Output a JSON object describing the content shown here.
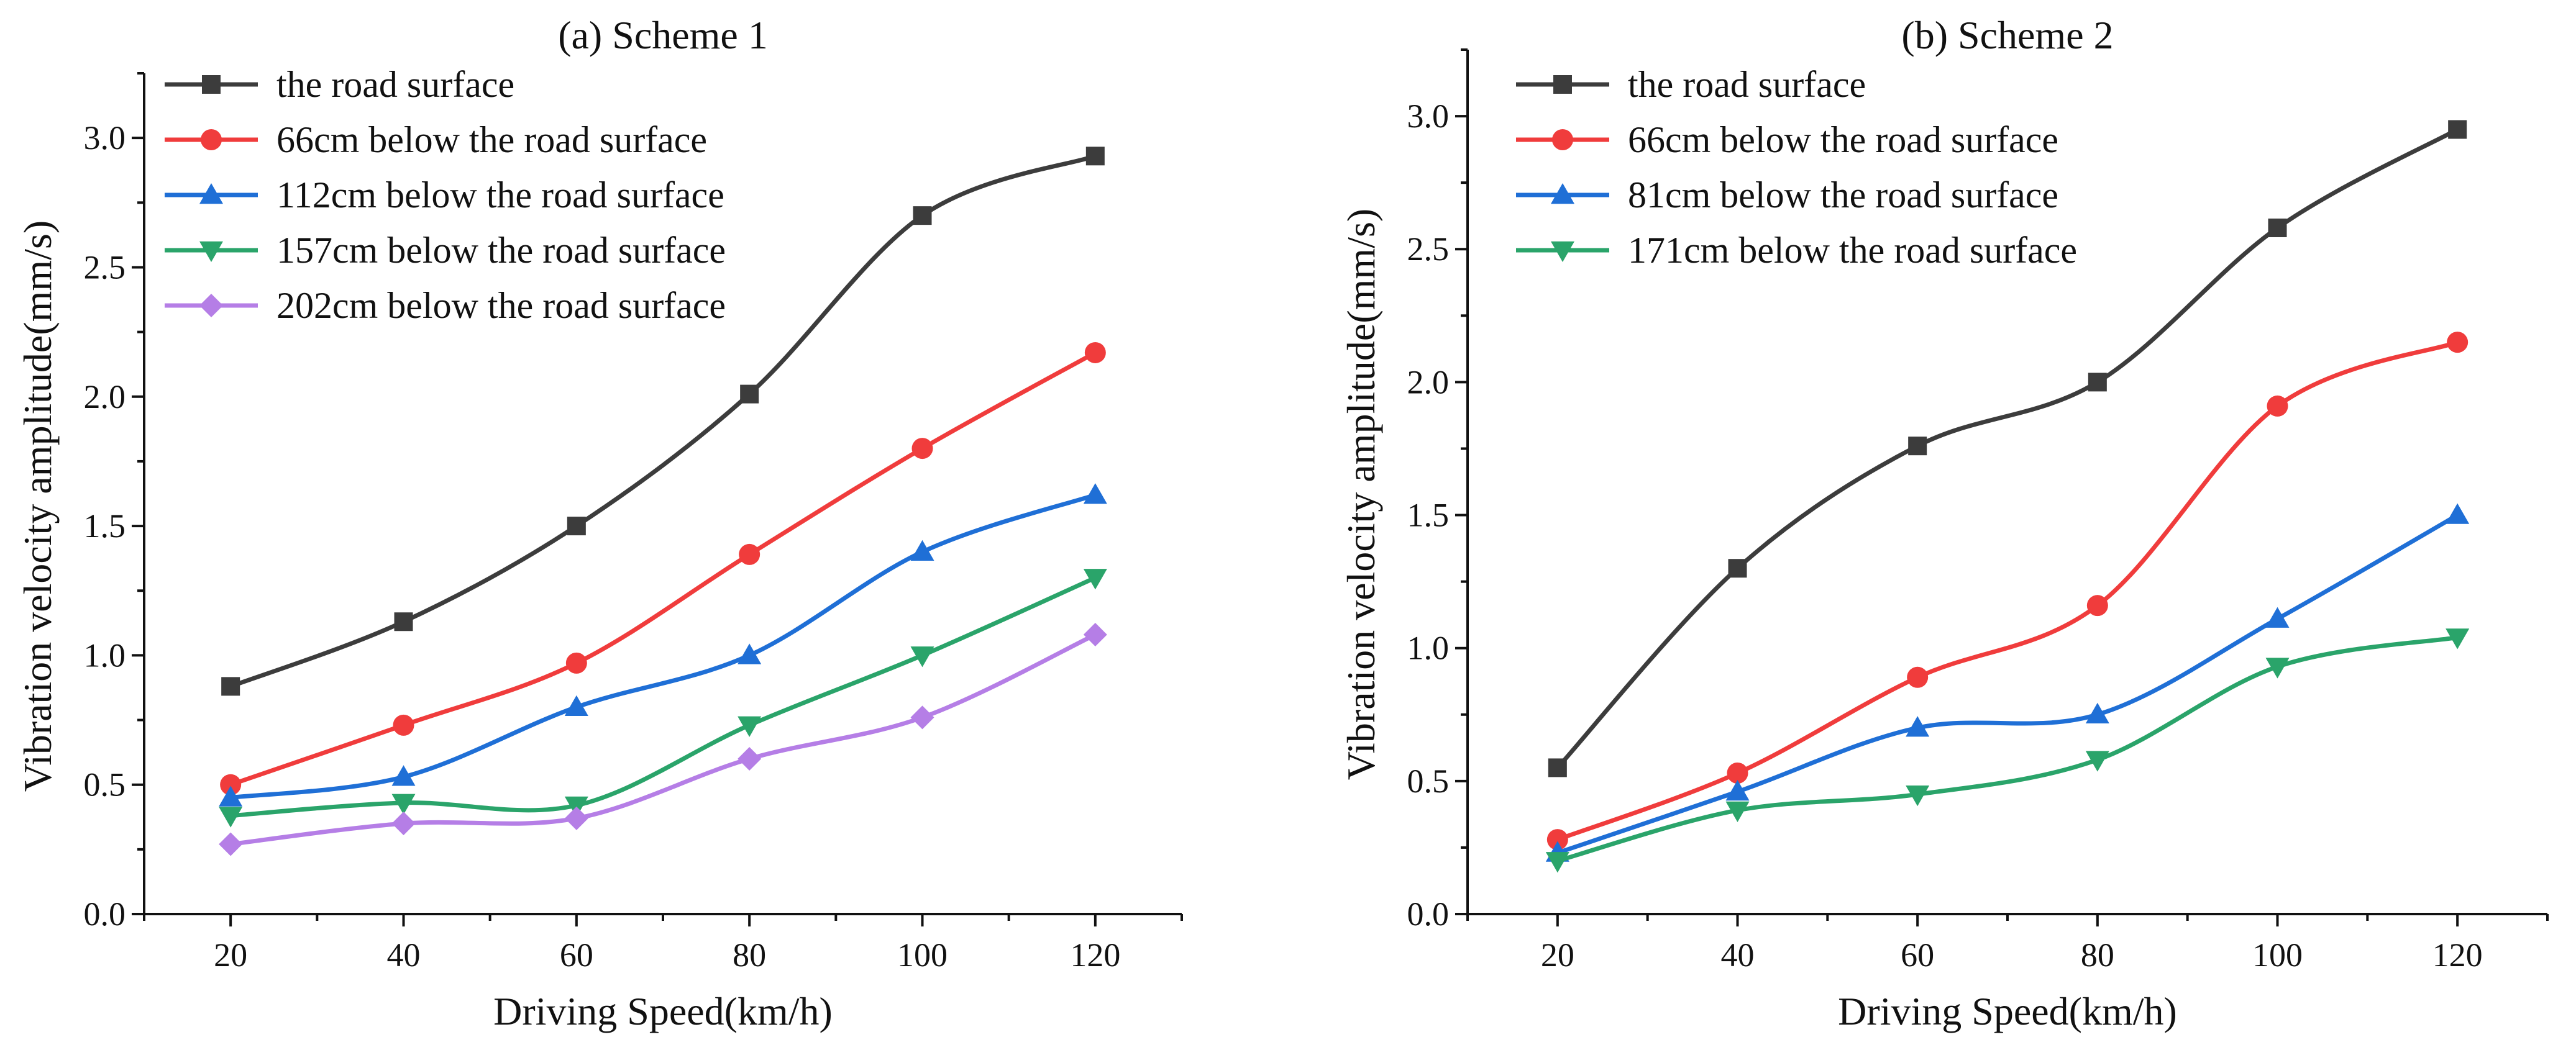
{
  "colors": {
    "road": "#3c3c3c",
    "cm66": "#f03c3c",
    "blue": "#1f6fd6",
    "green": "#2aa46a",
    "purple": "#b57ee6"
  },
  "chart_data": [
    {
      "type": "line",
      "title": "(a) Scheme 1",
      "xlabel": "Driving Speed(km/h)",
      "ylabel": "Vibration velocity amplitude(mm/s)",
      "xlim": [
        10,
        130
      ],
      "ylim": [
        0.0,
        3.25
      ],
      "x": [
        20,
        40,
        60,
        80,
        100,
        120
      ],
      "xticks": [
        "20",
        "40",
        "60",
        "80",
        "100",
        "120"
      ],
      "yticks": [
        "0.0",
        "0.5",
        "1.0",
        "1.5",
        "2.0",
        "2.5",
        "3.0"
      ],
      "legend_position": "top-left",
      "series": [
        {
          "name": "the road surface",
          "marker": "square",
          "color": "#3c3c3c",
          "values": [
            0.88,
            1.13,
            1.5,
            2.01,
            2.7,
            2.93
          ]
        },
        {
          "name": "66cm below the road surface",
          "marker": "circle",
          "color": "#f03c3c",
          "values": [
            0.5,
            0.73,
            0.97,
            1.39,
            1.8,
            2.17
          ]
        },
        {
          "name": "112cm below the road surface",
          "marker": "triangle-up",
          "color": "#1f6fd6",
          "values": [
            0.45,
            0.53,
            0.8,
            1.0,
            1.4,
            1.62
          ]
        },
        {
          "name": "157cm below the road surface",
          "marker": "triangle-down",
          "color": "#2aa46a",
          "values": [
            0.38,
            0.43,
            0.42,
            0.73,
            1.0,
            1.3
          ]
        },
        {
          "name": "202cm below the road surface",
          "marker": "diamond",
          "color": "#b57ee6",
          "values": [
            0.27,
            0.35,
            0.37,
            0.6,
            0.76,
            1.08
          ]
        }
      ]
    },
    {
      "type": "line",
      "title": "(b) Scheme 2",
      "xlabel": "Driving Speed(km/h)",
      "ylabel": "Vibration velocity amplitude(mm/s)",
      "xlim": [
        10,
        130
      ],
      "ylim": [
        0.0,
        3.25
      ],
      "x": [
        20,
        40,
        60,
        80,
        100,
        120
      ],
      "xticks": [
        "20",
        "40",
        "60",
        "80",
        "100",
        "120"
      ],
      "yticks": [
        "0.0",
        "0.5",
        "1.0",
        "1.5",
        "2.0",
        "2.5",
        "3.0"
      ],
      "legend_position": "top-left",
      "series": [
        {
          "name": "the road surface",
          "marker": "square",
          "color": "#3c3c3c",
          "values": [
            0.55,
            1.3,
            1.76,
            2.0,
            2.58,
            2.95
          ]
        },
        {
          "name": "66cm below the road surface",
          "marker": "circle",
          "color": "#f03c3c",
          "values": [
            0.28,
            0.53,
            0.89,
            1.16,
            1.91,
            2.15
          ]
        },
        {
          "name": "81cm below the road surface",
          "marker": "triangle-up",
          "color": "#1f6fd6",
          "values": [
            0.23,
            0.46,
            0.7,
            0.75,
            1.11,
            1.5
          ]
        },
        {
          "name": "171cm below the road surface",
          "marker": "triangle-down",
          "color": "#2aa46a",
          "values": [
            0.2,
            0.39,
            0.45,
            0.58,
            0.93,
            1.04
          ]
        }
      ]
    }
  ]
}
